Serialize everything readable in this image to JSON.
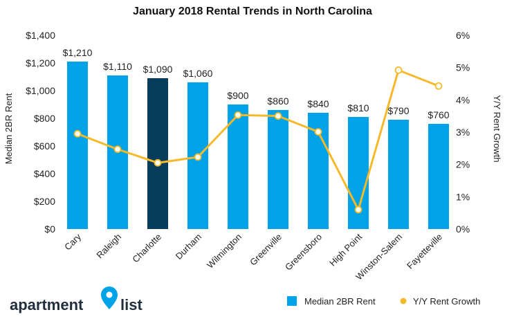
{
  "chart_data": {
    "type": "bar",
    "title": "January 2018 Rental Trends in North Carolina",
    "categories": [
      "Cary",
      "Raleigh",
      "Charlotte",
      "Durham",
      "Wilmington",
      "Greenville",
      "Greensboro",
      "High Point",
      "Winston-Salem",
      "Fayetteville"
    ],
    "ylabel": "Median 2BR Rent",
    "y2label": "Y/Y Rent Growth",
    "ylim": [
      0,
      1400
    ],
    "y2lim": [
      0,
      6
    ],
    "yticks": [
      "$0",
      "$200",
      "$400",
      "$600",
      "$800",
      "$1,000",
      "$1,200",
      "$1,400"
    ],
    "y2ticks": [
      "0%",
      "1%",
      "2%",
      "3%",
      "4%",
      "5%",
      "6%"
    ],
    "grid": false,
    "legend_position": "bottom-right",
    "series": [
      {
        "name": "Median 2BR Rent",
        "type": "bar",
        "axis": "left",
        "values": [
          1210,
          1110,
          1090,
          1060,
          900,
          860,
          840,
          810,
          790,
          760
        ],
        "labels": [
          "$1,210",
          "$1,110",
          "$1,090",
          "$1,060",
          "$900",
          "$860",
          "$840",
          "$810",
          "$790",
          "$760"
        ],
        "color": "#00a3e8",
        "highlight_index": 2,
        "highlight_color": "#063c5c"
      },
      {
        "name": "Y/Y Rent Growth",
        "type": "line",
        "axis": "right",
        "values": [
          2.95,
          2.47,
          2.05,
          2.23,
          3.53,
          3.5,
          3.01,
          0.6,
          4.92,
          4.43
        ],
        "color": "#f5b92a"
      }
    ]
  },
  "logo": {
    "word_left": "apartment",
    "word_right": "list",
    "pin_color": "#00a3e8"
  }
}
